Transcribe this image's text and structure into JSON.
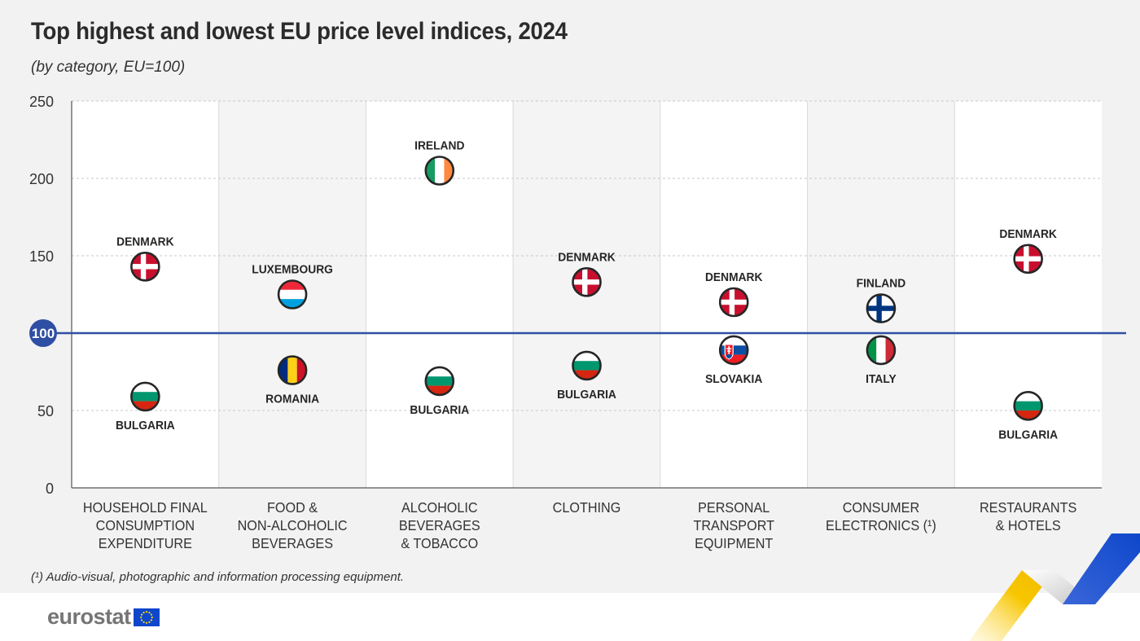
{
  "title": "Top highest and lowest EU price level indices, 2024",
  "subtitle": "(by category, EU=100)",
  "footnote": "(¹) Audio-visual, photographic and information processing equipment.",
  "logo_text": "eurostat",
  "colors": {
    "reference_line": "#2e4fa3",
    "grid": "#c8c8c8",
    "panel_light": "#ffffff",
    "panel_dark": "#f4f4f4",
    "eu_blue": "#0e47cb",
    "eu_yellow": "#ffd617"
  },
  "chart_data": {
    "type": "scatter",
    "title": "Top highest and lowest EU price level indices, 2024",
    "subtitle": "(by category, EU=100)",
    "ylim": [
      0,
      250
    ],
    "yticks": [
      0,
      50,
      100,
      150,
      200,
      250
    ],
    "reference_value": 100,
    "reference_label": "100",
    "grid": true,
    "categories": [
      "HOUSEHOLD FINAL CONSUMPTION EXPENDITURE",
      "FOOD & NON-ALCOHOLIC BEVERAGES",
      "ALCOHOLIC BEVERAGES & TOBACCO",
      "CLOTHING",
      "PERSONAL TRANSPORT EQUIPMENT",
      "CONSUMER ELECTRONICS (¹)",
      "RESTAURANTS & HOTELS"
    ],
    "category_lines": [
      [
        "HOUSEHOLD FINAL",
        "CONSUMPTION",
        "EXPENDITURE"
      ],
      [
        "FOOD &",
        "NON-ALCOHOLIC",
        "BEVERAGES"
      ],
      [
        "ALCOHOLIC",
        "BEVERAGES",
        "& TOBACCO"
      ],
      [
        "CLOTHING"
      ],
      [
        "PERSONAL",
        "TRANSPORT",
        "EQUIPMENT"
      ],
      [
        "CONSUMER",
        "ELECTRONICS (¹)"
      ],
      [
        "RESTAURANTS",
        "& HOTELS"
      ]
    ],
    "series": [
      {
        "name": "Highest",
        "points": [
          {
            "country": "DENMARK",
            "flag": "denmark",
            "value": 143
          },
          {
            "country": "LUXEMBOURG",
            "flag": "luxembourg",
            "value": 125
          },
          {
            "country": "IRELAND",
            "flag": "ireland",
            "value": 205
          },
          {
            "country": "DENMARK",
            "flag": "denmark",
            "value": 133
          },
          {
            "country": "DENMARK",
            "flag": "denmark",
            "value": 120
          },
          {
            "country": "FINLAND",
            "flag": "finland",
            "value": 116
          },
          {
            "country": "DENMARK",
            "flag": "denmark",
            "value": 148
          }
        ]
      },
      {
        "name": "Lowest",
        "points": [
          {
            "country": "BULGARIA",
            "flag": "bulgaria",
            "value": 59
          },
          {
            "country": "ROMANIA",
            "flag": "romania",
            "value": 76
          },
          {
            "country": "BULGARIA",
            "flag": "bulgaria",
            "value": 69
          },
          {
            "country": "BULGARIA",
            "flag": "bulgaria",
            "value": 79
          },
          {
            "country": "SLOVAKIA",
            "flag": "slovakia",
            "value": 89
          },
          {
            "country": "ITALY",
            "flag": "italy",
            "value": 89
          },
          {
            "country": "BULGARIA",
            "flag": "bulgaria",
            "value": 53
          }
        ]
      }
    ]
  }
}
